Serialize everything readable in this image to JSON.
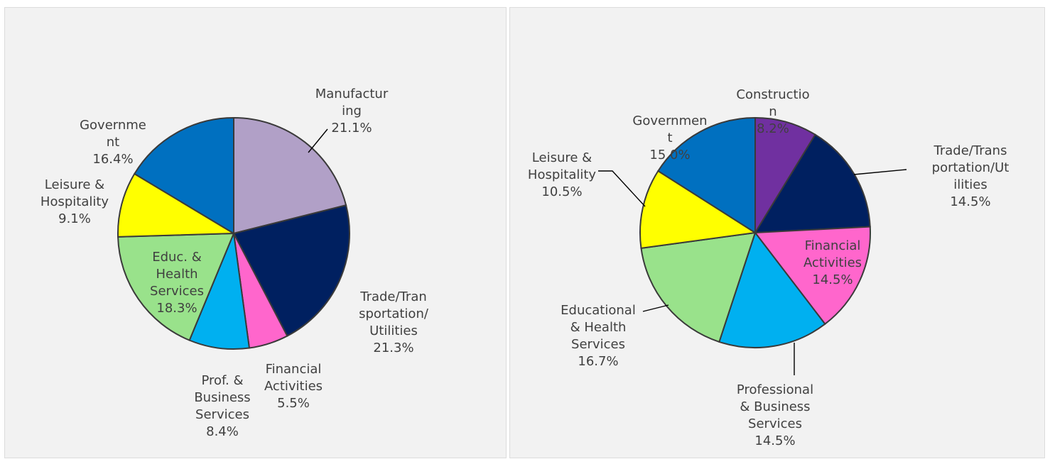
{
  "chart_data": [
    {
      "type": "pie",
      "slices": [
        {
          "label": [
            "Manufactur",
            "ing"
          ],
          "value": "21.1%",
          "pct": 21.1,
          "color": "#b1a0c7"
        },
        {
          "label": [
            "Trade/Tran",
            "sportation/",
            "Utilities"
          ],
          "value": "21.3%",
          "pct": 21.3,
          "color": "#002060"
        },
        {
          "label": [
            "Financial",
            "Activities"
          ],
          "value": "5.5%",
          "pct": 5.5,
          "color": "#ff66cc"
        },
        {
          "label": [
            "Prof. &",
            "Business",
            "Services"
          ],
          "value": "8.4%",
          "pct": 8.4,
          "color": "#00b0f0"
        },
        {
          "label": [
            "Educ. &",
            "Health",
            "Services"
          ],
          "value": "18.3%",
          "pct": 18.3,
          "color": "#99e28b"
        },
        {
          "label": [
            "Leisure &",
            "Hospitality"
          ],
          "value": "9.1%",
          "pct": 9.1,
          "color": "#ffff00"
        },
        {
          "label": [
            "Governme",
            "nt"
          ],
          "value": "16.4%",
          "pct": 16.4,
          "color": "#0070c0"
        }
      ]
    },
    {
      "type": "pie",
      "slices": [
        {
          "label": [
            "Constructio",
            "n"
          ],
          "value": "8.2%",
          "pct": 8.2,
          "color": "#7030a0"
        },
        {
          "label": [
            "Trade/Trans",
            "portation/Ut",
            "ilities"
          ],
          "value": "14.5%",
          "pct": 14.5,
          "color": "#002060"
        },
        {
          "label": [
            "Financial",
            "Activities"
          ],
          "value": "14.5%",
          "pct": 14.5,
          "color": "#ff66cc"
        },
        {
          "label": [
            "Professional",
            "& Business",
            "Services"
          ],
          "value": "14.5%",
          "pct": 14.5,
          "color": "#00b0f0"
        },
        {
          "label": [
            "Educational",
            "& Health",
            "Services"
          ],
          "value": "16.7%",
          "pct": 16.7,
          "color": "#99e28b"
        },
        {
          "label": [
            "Leisure &",
            "Hospitality"
          ],
          "value": "10.5%",
          "pct": 10.5,
          "color": "#ffff00"
        },
        {
          "label": [
            "Governmen",
            "t"
          ],
          "value": "15.0%",
          "pct": 15.0,
          "color": "#0070c0"
        }
      ]
    }
  ]
}
